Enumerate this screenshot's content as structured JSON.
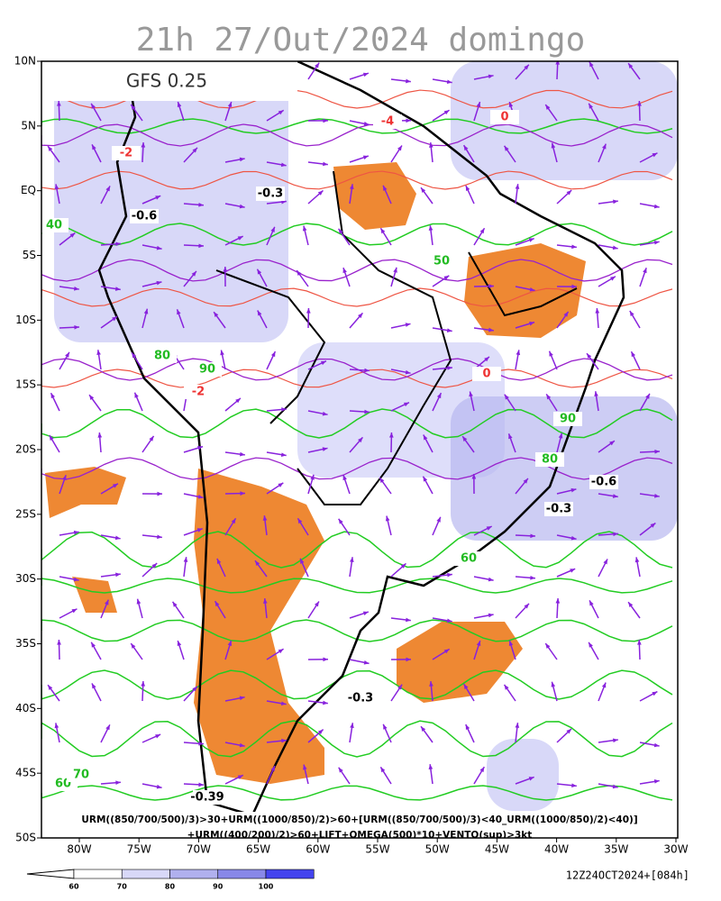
{
  "title": "21h 27/Out/2024 domingo",
  "model_label": "GFS 0.25",
  "lat_labels": [
    "10N",
    "5N",
    "EQ",
    "5S",
    "10S",
    "15S",
    "20S",
    "25S",
    "30S",
    "35S",
    "40S",
    "45S",
    "50S"
  ],
  "lon_labels": [
    "80W",
    "75W",
    "70W",
    "65W",
    "60W",
    "55W",
    "50W",
    "45W",
    "40W",
    "35W",
    "30W"
  ],
  "formula_lines": [
    "URM((850/700/500)/3)>30+URM((1000/850)/2)>60+[URM((850/700/500)/3)<40_URM((1000/850)/2)<40)]",
    "+URM((400/200)/2)>60+LIFT+OMEGA(500)*10+VENTO(sup)>3kt"
  ],
  "colorbar_labels": [
    "60",
    "70",
    "80",
    "90",
    "100"
  ],
  "timestamp": "12Z24OCT2024+[084h]",
  "contour_labels": [
    "-0.3",
    "-0.6",
    "-2",
    "80",
    "90",
    "40",
    "50",
    "60",
    "70",
    "0",
    "-0.39",
    "-4",
    "-0.3",
    "-0.6",
    "-0.3",
    "90",
    "80",
    "60",
    "-2",
    "0"
  ]
}
